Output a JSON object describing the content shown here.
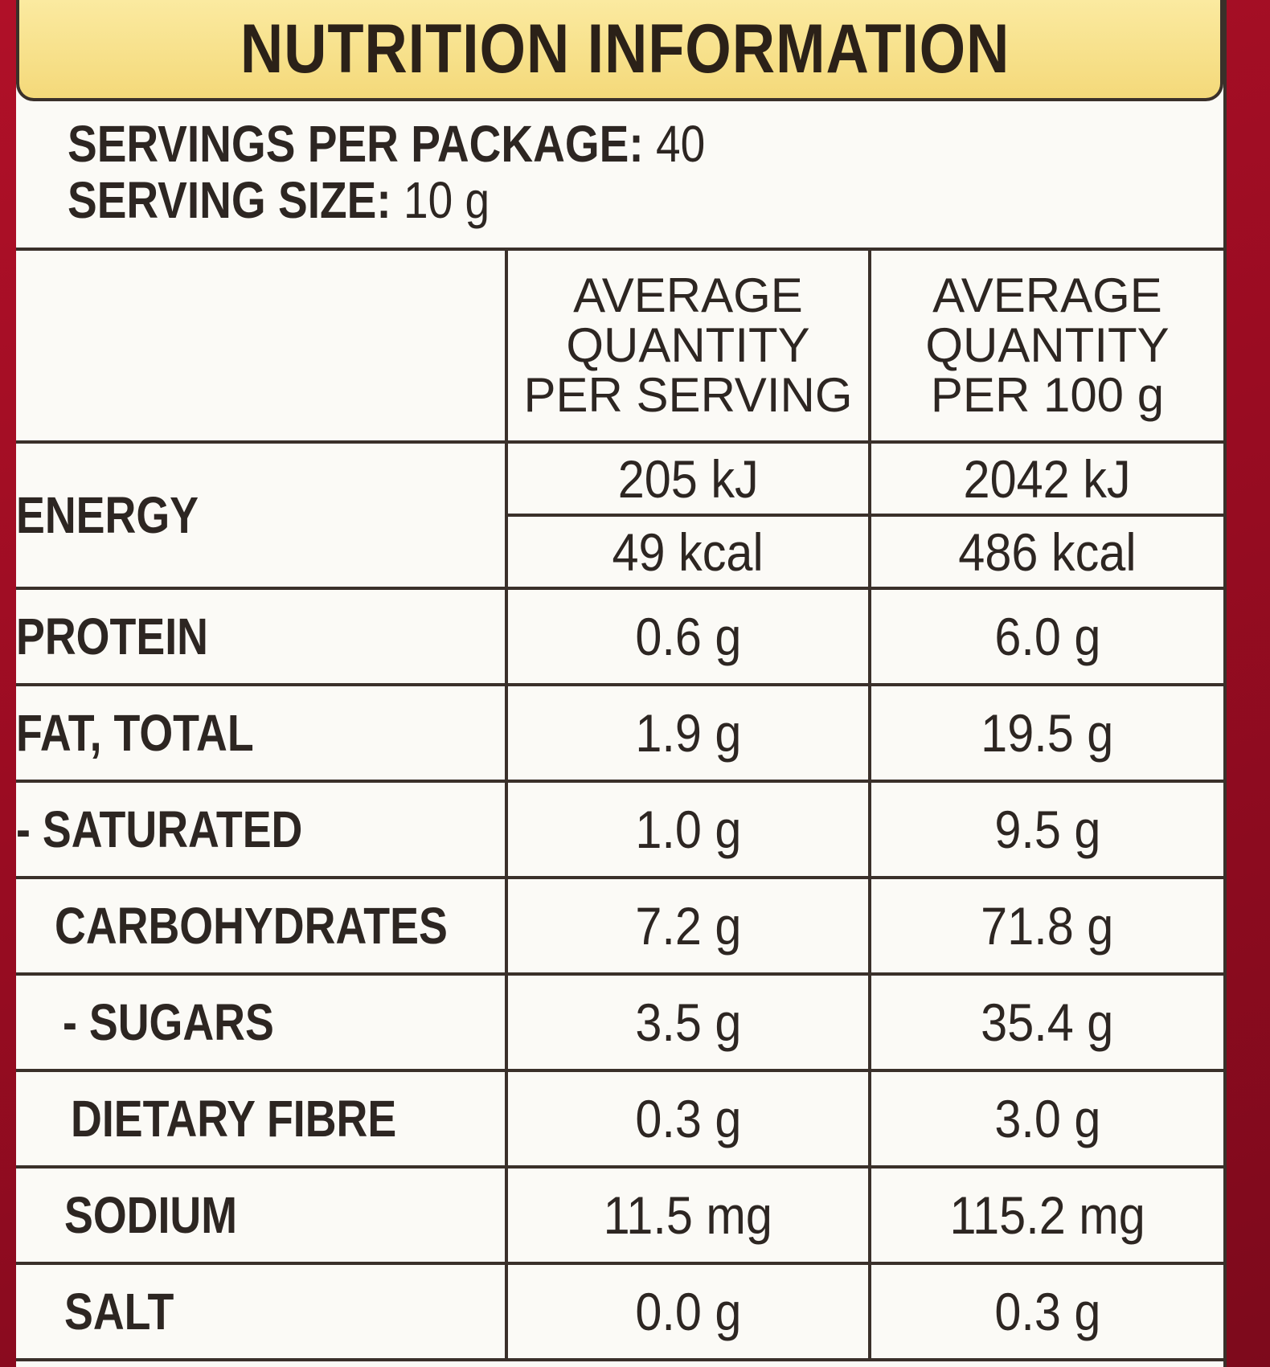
{
  "title": "NUTRITION INFORMATION",
  "servings": {
    "per_package_label": "SERVINGS PER PACKAGE:",
    "per_package_value": "40",
    "size_label": "SERVING SIZE:",
    "size_value": "10 g"
  },
  "table": {
    "header": {
      "per_serving": [
        "AVERAGE",
        "QUANTITY",
        "PER SERVING"
      ],
      "per_100g": [
        "AVERAGE",
        "QUANTITY",
        "PER 100 g"
      ]
    },
    "energy": {
      "name": "ENERGY",
      "kj_serving": "205 kJ",
      "kj_100g": "2042 kJ",
      "kcal_serving": "49 kcal",
      "kcal_100g": "486 kcal"
    },
    "rows": [
      {
        "name": "PROTEIN",
        "serving": "0.6 g",
        "per100": "6.0 g"
      },
      {
        "name": "FAT, TOTAL",
        "serving": "1.9 g",
        "per100": "19.5 g"
      },
      {
        "name": "- SATURATED",
        "serving": "1.0 g",
        "per100": "9.5 g"
      },
      {
        "name": "CARBOHYDRATES",
        "serving": "7.2 g",
        "per100": "71.8 g"
      },
      {
        "name": "- SUGARS",
        "serving": "3.5 g",
        "per100": "35.4 g"
      },
      {
        "name": "DIETARY FIBRE",
        "serving": "0.3 g",
        "per100": "3.0 g"
      },
      {
        "name": "SODIUM",
        "serving": "11.5 mg",
        "per100": "115.2 mg"
      },
      {
        "name": "SALT",
        "serving": "0.0 g",
        "per100": "0.3 g"
      }
    ]
  }
}
